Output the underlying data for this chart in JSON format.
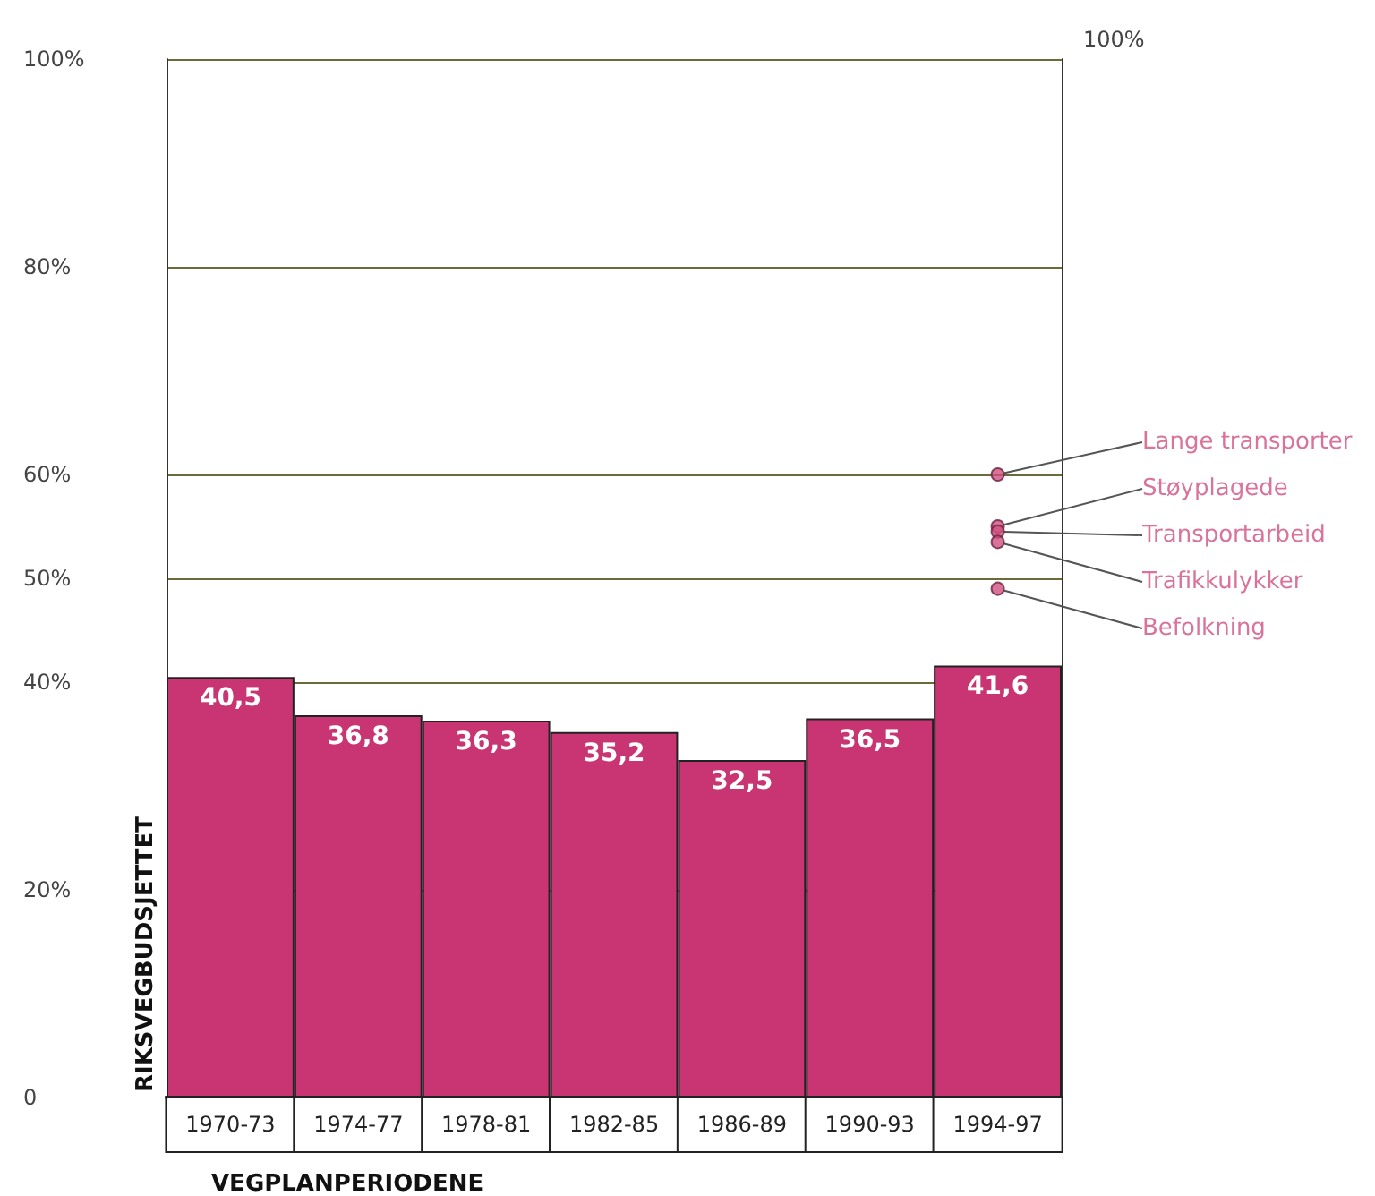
{
  "chart_data": {
    "type": "bar",
    "xlabel": "VEGPLANPERIODENE",
    "ylabel": "RIKSVEGBUDSJETTET",
    "categories": [
      "1970-73",
      "1974-77",
      "1978-81",
      "1982-85",
      "1986-89",
      "1990-93",
      "1994-97"
    ],
    "series": [
      {
        "color": "#c83572",
        "values": [
          40.5,
          36.8,
          36.3,
          35.2,
          32.5,
          36.5,
          41.6
        ],
        "value_labels": [
          "40,5",
          "36,8",
          "36,3",
          "35,2",
          "32,5",
          "36,5",
          "41,6"
        ]
      },
      {
        "type": "scatter",
        "name": "Lange transporter",
        "color": "#d0507f",
        "values": [
          null,
          null,
          null,
          null,
          null,
          null,
          60
        ]
      },
      {
        "type": "scatter",
        "name": "Støyplagede",
        "color": "#d0507f",
        "values": [
          null,
          null,
          null,
          null,
          null,
          null,
          55
        ]
      },
      {
        "type": "scatter",
        "name": "Transportarbeid",
        "color": "#d0507f",
        "values": [
          null,
          null,
          null,
          null,
          null,
          null,
          54.5
        ]
      },
      {
        "type": "scatter",
        "name": "Trafikkulykker",
        "color": "#d0507f",
        "values": [
          null,
          null,
          null,
          null,
          null,
          null,
          53.5
        ]
      },
      {
        "type": "scatter",
        "name": "Befolkning",
        "color": "#d0507f",
        "values": [
          null,
          null,
          null,
          null,
          null,
          null,
          49
        ]
      }
    ],
    "ylim": [
      0,
      100
    ],
    "yticks": [
      {
        "value": 0,
        "label": "0"
      },
      {
        "value": 20,
        "label": "20%"
      },
      {
        "value": 40,
        "label": "40%"
      },
      {
        "value": 50,
        "label": "50%"
      },
      {
        "value": 60,
        "label": "60%"
      },
      {
        "value": 80,
        "label": "80%"
      },
      {
        "value": 100,
        "label": "100%"
      }
    ],
    "grid": "y",
    "annotations": [
      "100%"
    ]
  }
}
